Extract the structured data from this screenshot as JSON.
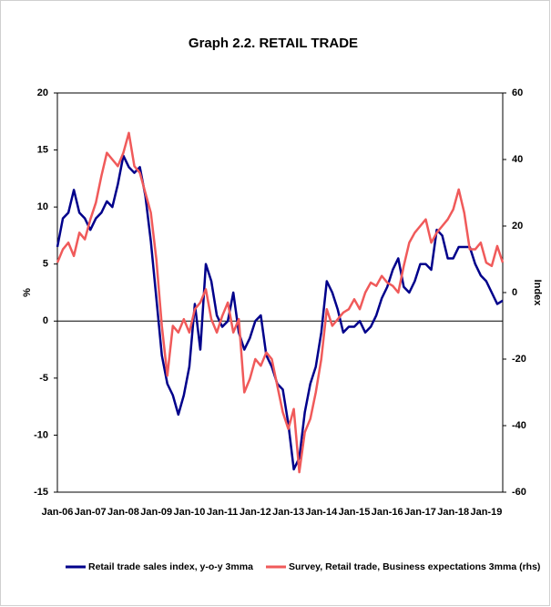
{
  "chart_data": {
    "type": "line",
    "title": "Graph 2.2. RETAIL TRADE",
    "ylabel": "%",
    "y2label": "Index",
    "categories": [
      "Jan-06",
      null,
      null,
      null,
      null,
      null,
      "Jan-07",
      null,
      null,
      null,
      null,
      null,
      "Jan-08",
      null,
      null,
      null,
      null,
      null,
      "Jan-09",
      null,
      null,
      null,
      null,
      null,
      "Jan-10",
      null,
      null,
      null,
      null,
      null,
      "Jan-11",
      null,
      null,
      null,
      null,
      null,
      "Jan-12",
      null,
      null,
      null,
      null,
      null,
      "Jan-13",
      null,
      null,
      null,
      null,
      null,
      "Jan-14",
      null,
      null,
      null,
      null,
      null,
      "Jan-15",
      null,
      null,
      null,
      null,
      null,
      "Jan-16",
      null,
      null,
      null,
      null,
      null,
      "Jan-17",
      null,
      null,
      null,
      null,
      null,
      "Jan-18",
      null,
      null,
      null,
      null,
      null,
      "Jan-19",
      null,
      null,
      null
    ],
    "series": [
      {
        "name": "Retail trade sales index, y-o-y 3mma",
        "color": "#00008b",
        "axis": "y",
        "values": [
          6.5,
          9,
          9.5,
          11.5,
          9.5,
          9,
          8,
          9,
          9.5,
          10.5,
          10,
          12,
          14.5,
          13.5,
          13,
          13.5,
          11,
          7,
          2,
          -3,
          -5.5,
          -6.5,
          -8.2,
          -6.5,
          -4,
          1.5,
          -2.5,
          5,
          3.5,
          0.5,
          -0.5,
          0,
          2.5,
          -1,
          -2.5,
          -1.5,
          0,
          0.5,
          -3,
          -4,
          -5.5,
          -6,
          -9,
          -13,
          -12,
          -8,
          -5.5,
          -4,
          -1,
          3.5,
          2.5,
          1,
          -1,
          -0.5,
          -0.5,
          0,
          -1,
          -0.5,
          0.5,
          2,
          3,
          4.5,
          5.5,
          3,
          2.5,
          3.5,
          5,
          5,
          4.5,
          8,
          7.5,
          5.5,
          5.5,
          6.5,
          6.5,
          6.5,
          5,
          4,
          3.5,
          2.5,
          1.5,
          1.8
        ]
      },
      {
        "name": "Survey, Retail trade, Business expectations 3mma (rhs)",
        "color": "#f05a5a",
        "axis": "y2",
        "values": [
          9,
          13,
          15,
          11,
          18,
          16,
          22,
          27,
          35,
          42,
          40,
          38,
          42,
          48,
          38,
          36,
          30,
          24,
          10,
          -10,
          -25,
          -10,
          -12,
          -8,
          -12,
          -5,
          -3,
          1,
          -8,
          -12,
          -7,
          -3,
          -12,
          -8,
          -30,
          -26,
          -20,
          -22,
          -18,
          -20,
          -28,
          -36,
          -41,
          -35,
          -54,
          -42,
          -38,
          -30,
          -20,
          -5,
          -10,
          -8,
          -6,
          -5,
          -2,
          -5,
          0,
          3,
          2,
          5,
          3,
          2,
          0,
          8,
          15,
          18,
          20,
          22,
          15,
          18,
          20,
          22,
          25,
          31,
          24,
          13,
          13,
          15,
          9,
          8,
          14,
          9
        ]
      }
    ],
    "ylim": [
      -15,
      20
    ],
    "yticks": [
      -15,
      -10,
      -5,
      0,
      5,
      10,
      15,
      20
    ],
    "y2lim": [
      -60,
      60
    ],
    "y2ticks": [
      -60,
      -40,
      -20,
      0,
      20,
      40,
      60
    ]
  }
}
